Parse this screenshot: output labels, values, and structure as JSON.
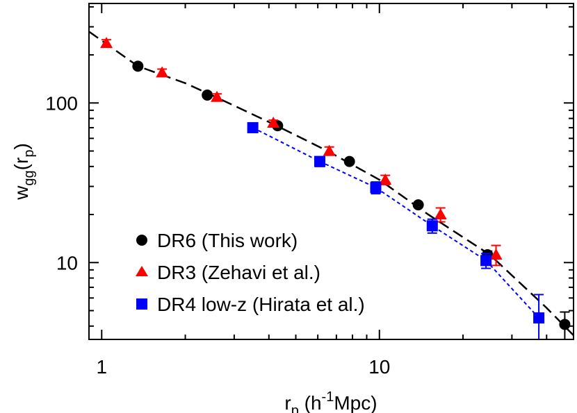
{
  "chart_data": {
    "type": "scatter",
    "title": "",
    "x_scale": "log",
    "y_scale": "log",
    "xlim": [
      0.9,
      50
    ],
    "ylim": [
      3.3,
      420
    ],
    "x_ticks": [
      {
        "value": 1,
        "label": "1"
      },
      {
        "value": 10,
        "label": "10"
      }
    ],
    "y_ticks": [
      {
        "value": 10,
        "label": "10"
      },
      {
        "value": 100,
        "label": "100"
      }
    ],
    "xlabel": {
      "base": "r",
      "base_sub": "p",
      "open": " (h",
      "sup": "-1",
      "close": "Mpc)"
    },
    "ylabel": {
      "base": "w",
      "base_sub": "gg",
      "open": "(r",
      "inner_sub": "p",
      "close": ")"
    },
    "legend_position": "bottom-left",
    "series": [
      {
        "name": "DR6 (This work)",
        "marker": "circle",
        "color": "#000000",
        "x": [
          1.35,
          2.4,
          4.3,
          7.8,
          13.8,
          24.5,
          46.5
        ],
        "y": [
          170,
          112,
          72,
          43,
          23,
          11.2,
          4.1
        ],
        "yerr": [
          0,
          0,
          0,
          0,
          0,
          0.6,
          0.8
        ]
      },
      {
        "name": "DR3 (Zehavi et al.)",
        "marker": "triangle",
        "color": "#ff0000",
        "x": [
          1.04,
          1.65,
          2.6,
          4.15,
          6.6,
          10.5,
          16.6,
          26.3
        ],
        "y": [
          237,
          155,
          109,
          75,
          50,
          33,
          20,
          11.2
        ],
        "yerr": [
          12,
          8,
          5,
          3,
          3,
          2.2,
          2,
          1.6
        ]
      },
      {
        "name": "DR4 low-z (Hirata et al.)",
        "marker": "square",
        "color": "#0000ff",
        "x": [
          3.5,
          6.1,
          9.7,
          15.5,
          24.2,
          37.5
        ],
        "y": [
          70,
          43,
          29.5,
          17,
          10.3,
          4.5
        ],
        "yerr": [
          0,
          3,
          2.5,
          1.7,
          1.1,
          1.8
        ]
      }
    ],
    "fit_lines": [
      {
        "style": "dashed",
        "color": "#000000",
        "x": [
          0.9,
          1.35,
          2.0,
          2.6,
          4.2,
          6.5,
          10.0,
          15.0,
          25.0,
          40.0,
          50.0
        ],
        "y": [
          280,
          170,
          133,
          108,
          73,
          50,
          33,
          20,
          11.2,
          5.2,
          3.5
        ]
      },
      {
        "style": "dotted",
        "color": "#0000ff",
        "x": [
          3.5,
          6.1,
          9.7,
          15.5,
          24.2,
          37.5
        ],
        "y": [
          70,
          43,
          29.5,
          17,
          10.3,
          4.5
        ]
      }
    ]
  }
}
